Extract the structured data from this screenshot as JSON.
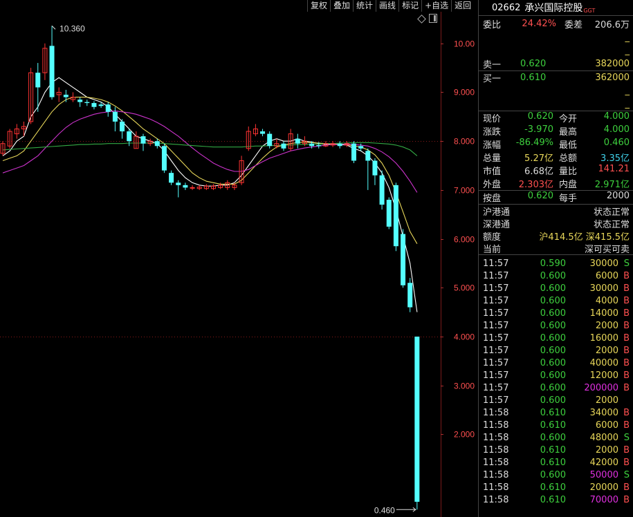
{
  "toolbar": [
    "复权",
    "叠加",
    "统计",
    "画线",
    "标记",
    "+自选",
    "返回"
  ],
  "header": {
    "code": "02662",
    "name": "承兴国际控股",
    "tag": "GGT"
  },
  "weibi": {
    "label": "委比",
    "value": "24.42%",
    "diff_label": "委差",
    "diff_value": "206.6万"
  },
  "placeholders": [
    "_",
    "_"
  ],
  "orderbook": [
    {
      "label": "卖一",
      "price": "0.620",
      "volume": "382000"
    },
    {
      "label": "买一",
      "price": "0.610",
      "volume": "362000"
    }
  ],
  "placeholders_after": [
    "_",
    "_"
  ],
  "quote": [
    {
      "l1": "现价",
      "v1": "0.620",
      "c1": "g",
      "l2": "今开",
      "v2": "4.000",
      "c2": "g"
    },
    {
      "l1": "涨跌",
      "v1": "-3.970",
      "c1": "g",
      "l2": "最高",
      "v2": "4.000",
      "c2": "g"
    },
    {
      "l1": "涨幅",
      "v1": "-86.49%",
      "c1": "g",
      "l2": "最低",
      "v2": "0.460",
      "c2": "g"
    },
    {
      "l1": "总量",
      "v1": "5.27亿",
      "c1": "y",
      "l2": "总额",
      "v2": "3.35亿",
      "c2": "c"
    },
    {
      "l1": "市值",
      "v1": "6.68亿",
      "c1": "w",
      "l2": "量比",
      "v2": "141.21",
      "c2": "r"
    },
    {
      "l1": "外盘",
      "v1": "2.303亿",
      "c1": "r",
      "l2": "内盘",
      "v2": "2.971亿",
      "c2": "g"
    }
  ],
  "anpan": {
    "l1": "按盘",
    "v1": "0.620",
    "l2": "每手",
    "v2": "2000"
  },
  "connect": [
    {
      "label": "沪港通",
      "value": "状态正常"
    },
    {
      "label": "深港通",
      "value": "状态正常"
    }
  ],
  "quota": {
    "label": "额度",
    "sh": "沪414.5亿",
    "sz": "深415.5亿"
  },
  "current": {
    "label": "当前",
    "value": "深可买可卖"
  },
  "ticks": [
    {
      "t": "11:57",
      "p": "0.590",
      "v": "30000",
      "vc": "y",
      "s": "S"
    },
    {
      "t": "11:57",
      "p": "0.600",
      "v": "6000",
      "vc": "y",
      "s": "B"
    },
    {
      "t": "11:57",
      "p": "0.600",
      "v": "30000",
      "vc": "y",
      "s": "B"
    },
    {
      "t": "11:57",
      "p": "0.600",
      "v": "4000",
      "vc": "y",
      "s": "B"
    },
    {
      "t": "11:57",
      "p": "0.600",
      "v": "14000",
      "vc": "y",
      "s": "B"
    },
    {
      "t": "11:57",
      "p": "0.600",
      "v": "2000",
      "vc": "y",
      "s": "B"
    },
    {
      "t": "11:57",
      "p": "0.600",
      "v": "16000",
      "vc": "y",
      "s": "B"
    },
    {
      "t": "11:57",
      "p": "0.600",
      "v": "2000",
      "vc": "y",
      "s": "B"
    },
    {
      "t": "11:57",
      "p": "0.600",
      "v": "40000",
      "vc": "y",
      "s": "B"
    },
    {
      "t": "11:57",
      "p": "0.600",
      "v": "12000",
      "vc": "y",
      "s": "B"
    },
    {
      "t": "11:57",
      "p": "0.600",
      "v": "200000",
      "vc": "m",
      "s": "B"
    },
    {
      "t": "11:57",
      "p": "0.600",
      "v": "2000",
      "vc": "y",
      "s": ""
    },
    {
      "t": "11:58",
      "p": "0.610",
      "v": "34000",
      "vc": "y",
      "s": "B"
    },
    {
      "t": "11:58",
      "p": "0.610",
      "v": "6000",
      "vc": "y",
      "s": "B"
    },
    {
      "t": "11:58",
      "p": "0.600",
      "v": "48000",
      "vc": "y",
      "s": "S"
    },
    {
      "t": "11:58",
      "p": "0.610",
      "v": "2000",
      "vc": "y",
      "s": "B"
    },
    {
      "t": "11:58",
      "p": "0.610",
      "v": "42000",
      "vc": "y",
      "s": "B"
    },
    {
      "t": "11:58",
      "p": "0.600",
      "v": "50000",
      "vc": "m",
      "s": "S"
    },
    {
      "t": "11:58",
      "p": "0.610",
      "v": "20000",
      "vc": "y",
      "s": "B"
    },
    {
      "t": "11:58",
      "p": "0.610",
      "v": "70000",
      "vc": "m",
      "s": "B"
    }
  ],
  "chart_data": {
    "type": "candlestick",
    "ylim": [
      0.3,
      10.6
    ],
    "yticks": [
      "10.00",
      "9.000",
      "8.000",
      "7.000",
      "6.000",
      "5.000",
      "4.000",
      "3.000",
      "2.000"
    ],
    "annotations": {
      "high": "10.360",
      "low": "0.460"
    },
    "candles": [
      [
        7.75,
        7.95,
        7.7,
        8.0
      ],
      [
        7.9,
        8.2,
        7.85,
        8.25
      ],
      [
        8.15,
        8.25,
        8.05,
        8.35
      ],
      [
        8.25,
        8.3,
        8.1,
        8.4
      ],
      [
        8.4,
        9.4,
        8.35,
        9.5
      ],
      [
        9.4,
        9.1,
        8.6,
        9.6
      ],
      [
        9.4,
        9.9,
        9.25,
        10.0
      ],
      [
        9.95,
        8.9,
        8.85,
        10.36
      ],
      [
        8.95,
        9.0,
        8.8,
        9.1
      ],
      [
        8.95,
        8.9,
        8.8,
        9.05
      ],
      [
        8.85,
        8.9,
        8.8,
        9.0
      ],
      [
        8.85,
        8.8,
        8.7,
        8.9
      ],
      [
        8.8,
        8.78,
        8.72,
        8.85
      ],
      [
        8.78,
        8.7,
        8.65,
        8.82
      ],
      [
        8.75,
        8.72,
        8.68,
        8.8
      ],
      [
        8.75,
        8.6,
        8.5,
        8.8
      ],
      [
        8.6,
        8.4,
        8.2,
        8.7
      ],
      [
        8.4,
        8.2,
        8.05,
        8.45
      ],
      [
        8.2,
        8.0,
        7.9,
        8.25
      ],
      [
        7.85,
        8.1,
        7.85,
        8.2
      ],
      [
        8.1,
        7.95,
        7.8,
        8.15
      ],
      [
        7.95,
        8.0,
        7.9,
        8.05
      ],
      [
        8.0,
        7.9,
        7.85,
        8.05
      ],
      [
        7.9,
        7.4,
        7.35,
        7.95
      ],
      [
        7.35,
        7.15,
        7.1,
        7.4
      ],
      [
        7.15,
        7.1,
        6.85,
        7.2
      ],
      [
        7.1,
        7.05,
        7.0,
        7.15
      ],
      [
        7.05,
        7.05,
        7.0,
        7.1
      ],
      [
        7.03,
        7.06,
        7.0,
        7.1
      ],
      [
        7.03,
        7.08,
        7.0,
        7.12
      ],
      [
        7.03,
        7.08,
        7.0,
        7.12
      ],
      [
        7.05,
        7.1,
        7.02,
        7.15
      ],
      [
        7.05,
        7.15,
        7.0,
        7.2
      ],
      [
        7.05,
        7.1,
        7.0,
        7.15
      ],
      [
        7.15,
        7.6,
        7.1,
        7.7
      ],
      [
        7.85,
        8.2,
        7.8,
        8.3
      ],
      [
        8.15,
        8.25,
        8.1,
        8.35
      ],
      [
        8.2,
        8.15,
        8.1,
        8.25
      ],
      [
        8.15,
        7.9,
        7.85,
        8.2
      ],
      [
        7.9,
        7.95,
        7.85,
        8.05
      ],
      [
        7.95,
        7.85,
        7.8,
        8.0
      ],
      [
        7.85,
        8.15,
        7.8,
        8.25
      ],
      [
        8.05,
        7.95,
        7.85,
        8.15
      ],
      [
        7.95,
        8.0,
        7.9,
        8.1
      ],
      [
        7.95,
        7.9,
        7.85,
        8.0
      ],
      [
        7.92,
        7.9,
        7.85,
        7.98
      ],
      [
        7.9,
        7.95,
        7.88,
        8.0
      ],
      [
        7.92,
        7.95,
        7.88,
        8.0
      ],
      [
        7.95,
        7.9,
        7.85,
        8.0
      ],
      [
        7.92,
        7.95,
        7.88,
        8.0
      ],
      [
        7.95,
        7.6,
        7.55,
        8.0
      ],
      [
        7.9,
        7.85,
        7.8,
        7.95
      ],
      [
        7.8,
        7.6,
        7.0,
        7.85
      ],
      [
        7.6,
        7.3,
        7.1,
        7.65
      ],
      [
        7.3,
        6.7,
        6.6,
        7.4
      ],
      [
        6.8,
        6.25,
        6.2,
        6.85
      ],
      [
        7.1,
        5.85,
        5.75,
        7.15
      ],
      [
        6.1,
        5.05,
        5.0,
        6.2
      ],
      [
        5.1,
        4.6,
        4.5,
        5.2
      ],
      [
        4.0,
        0.62,
        0.46,
        4.0
      ]
    ],
    "ma_series": [
      {
        "color": "#ffffff",
        "values": [
          7.7,
          7.8,
          8.0,
          8.1,
          8.5,
          8.7,
          9.0,
          9.2,
          9.3,
          9.2,
          9.1,
          9.0,
          8.9,
          8.85,
          8.8,
          8.7,
          8.55,
          8.4,
          8.25,
          8.1,
          8.05,
          8.0,
          7.95,
          7.8,
          7.6,
          7.4,
          7.25,
          7.15,
          7.1,
          7.08,
          7.08,
          7.1,
          7.1,
          7.15,
          7.3,
          7.5,
          7.7,
          7.9,
          8.0,
          8.05,
          8.0,
          8.0,
          8.05,
          8.0,
          7.98,
          7.95,
          7.93,
          7.93,
          7.93,
          7.92,
          7.85,
          7.8,
          7.7,
          7.55,
          7.35,
          7.05,
          6.6,
          6.05,
          5.5,
          4.5
        ]
      },
      {
        "color": "#e8d75a",
        "values": [
          7.6,
          7.65,
          7.7,
          7.8,
          8.0,
          8.2,
          8.4,
          8.6,
          8.75,
          8.85,
          8.9,
          8.9,
          8.9,
          8.88,
          8.85,
          8.8,
          8.72,
          8.62,
          8.5,
          8.38,
          8.25,
          8.15,
          8.05,
          7.95,
          7.8,
          7.65,
          7.5,
          7.35,
          7.25,
          7.18,
          7.15,
          7.12,
          7.12,
          7.12,
          7.2,
          7.35,
          7.5,
          7.65,
          7.78,
          7.88,
          7.92,
          7.95,
          7.97,
          7.98,
          7.97,
          7.96,
          7.95,
          7.94,
          7.94,
          7.93,
          7.9,
          7.88,
          7.82,
          7.72,
          7.55,
          7.3,
          6.95,
          6.55,
          6.15,
          5.9
        ]
      },
      {
        "color": "#cc33cc",
        "values": [
          7.35,
          7.4,
          7.45,
          7.5,
          7.6,
          7.7,
          7.85,
          8.0,
          8.15,
          8.28,
          8.38,
          8.45,
          8.5,
          8.55,
          8.58,
          8.6,
          8.62,
          8.6,
          8.58,
          8.55,
          8.5,
          8.45,
          8.38,
          8.3,
          8.2,
          8.1,
          7.98,
          7.86,
          7.75,
          7.65,
          7.55,
          7.48,
          7.42,
          7.38,
          7.38,
          7.42,
          7.5,
          7.58,
          7.65,
          7.7,
          7.75,
          7.8,
          7.83,
          7.86,
          7.88,
          7.9,
          7.92,
          7.93,
          7.93,
          7.94,
          7.93,
          7.92,
          7.9,
          7.85,
          7.78,
          7.68,
          7.55,
          7.38,
          7.18,
          6.95
        ]
      },
      {
        "color": "#33aa44",
        "values": [
          7.82,
          7.83,
          7.84,
          7.85,
          7.86,
          7.87,
          7.88,
          7.89,
          7.9,
          7.91,
          7.92,
          7.93,
          7.93,
          7.94,
          7.94,
          7.95,
          7.95,
          7.95,
          7.96,
          7.96,
          7.96,
          7.96,
          7.96,
          7.95,
          7.94,
          7.93,
          7.92,
          7.91,
          7.9,
          7.89,
          7.88,
          7.88,
          7.88,
          7.88,
          7.88,
          7.89,
          7.9,
          7.9,
          7.91,
          7.91,
          7.92,
          7.92,
          7.93,
          7.93,
          7.94,
          7.94,
          7.95,
          7.95,
          7.96,
          7.96,
          7.97,
          7.97,
          7.97,
          7.96,
          7.95,
          7.94,
          7.92,
          7.88,
          7.82,
          7.7
        ]
      }
    ]
  }
}
